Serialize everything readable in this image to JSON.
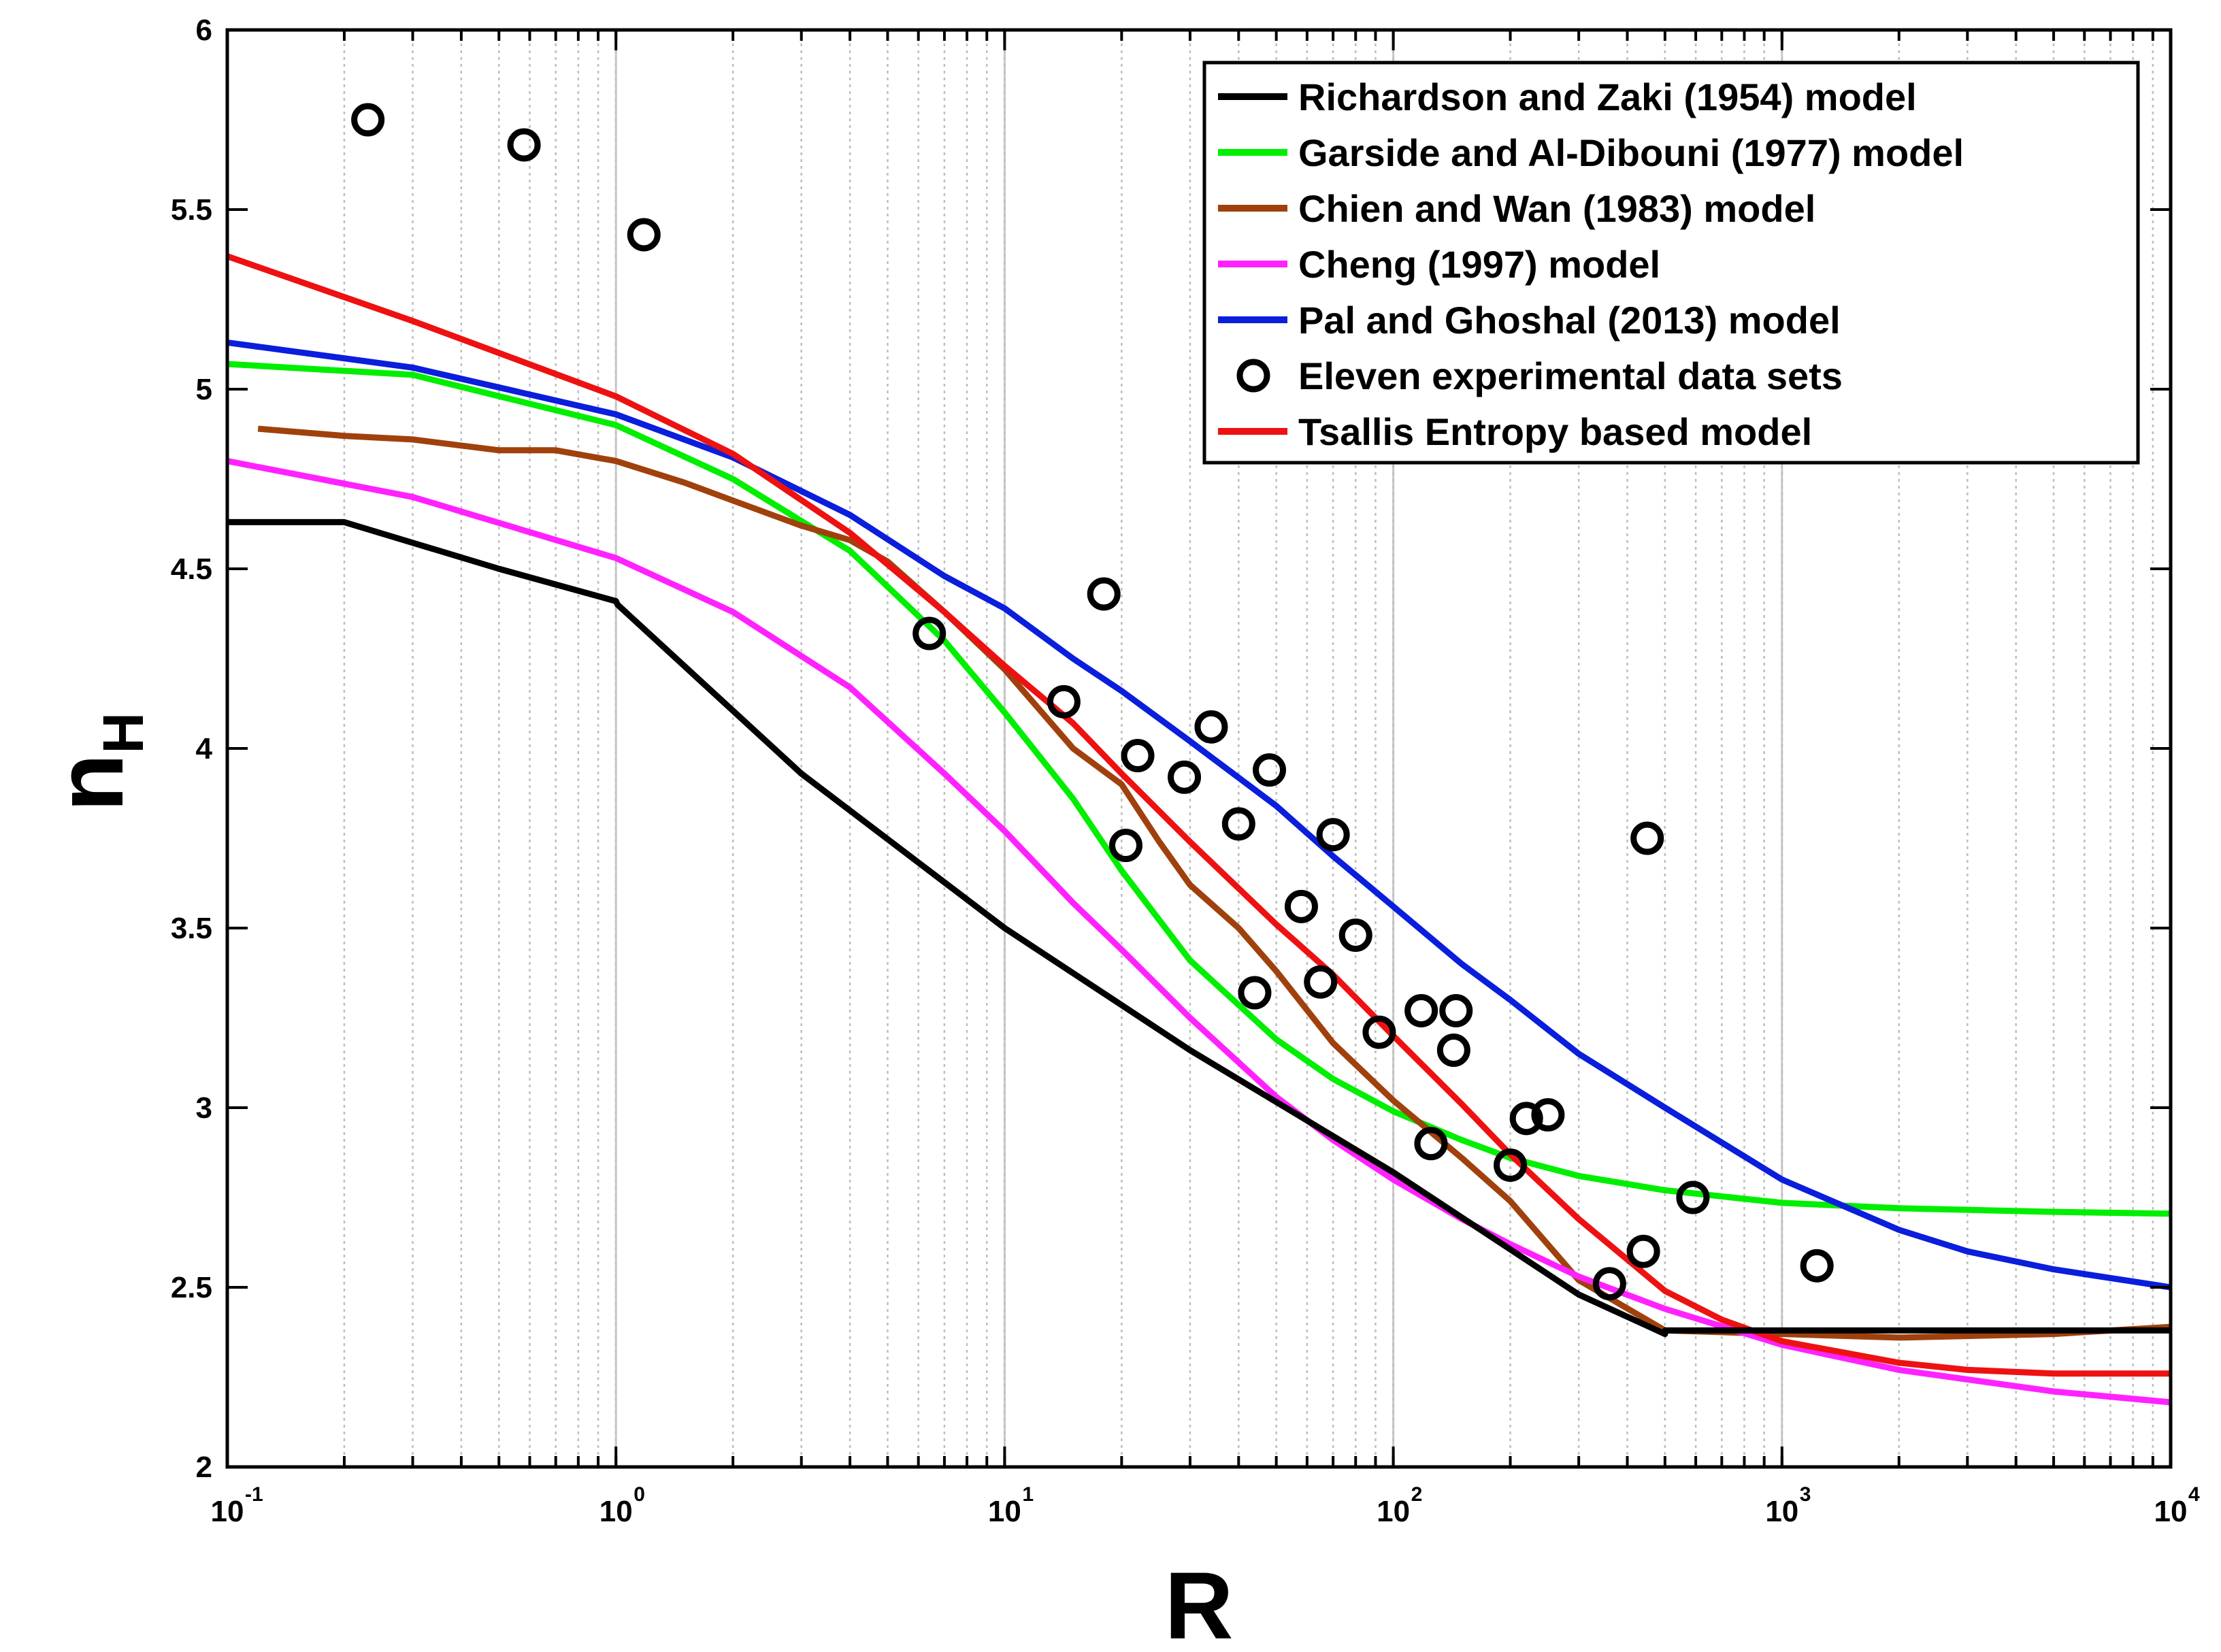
{
  "chart_data": {
    "type": "line",
    "xscale": "log",
    "xlabel": "R",
    "ylabel": "n",
    "ylabel_subscript": "H",
    "xlim": [
      0.1,
      10000
    ],
    "ylim": [
      2,
      6
    ],
    "x_major_ticks": [
      {
        "value": 0.1,
        "base": "10",
        "exp": "-1"
      },
      {
        "value": 1,
        "base": "10",
        "exp": "0"
      },
      {
        "value": 10,
        "base": "10",
        "exp": "1"
      },
      {
        "value": 100,
        "base": "10",
        "exp": "2"
      },
      {
        "value": 1000,
        "base": "10",
        "exp": "3"
      },
      {
        "value": 10000,
        "base": "10",
        "exp": "4"
      }
    ],
    "y_ticks": [
      {
        "value": 2,
        "label": "2"
      },
      {
        "value": 2.5,
        "label": "2.5"
      },
      {
        "value": 3,
        "label": "3"
      },
      {
        "value": 3.5,
        "label": "3.5"
      },
      {
        "value": 4,
        "label": "4"
      },
      {
        "value": 4.5,
        "label": "4.5"
      },
      {
        "value": 5,
        "label": "5"
      },
      {
        "value": 5.5,
        "label": "5.5"
      },
      {
        "value": 6,
        "label": "6"
      }
    ],
    "grid": "vertical minor and major (dotted)",
    "legend_position": "top-right",
    "series": [
      {
        "name": "Richardson and Zaki (1954) model",
        "color": "#000000",
        "kind": "line",
        "x": [
          0.1,
          0.2,
          0.5,
          1.0,
          1.01,
          3,
          10,
          30,
          100,
          300,
          500,
          501,
          1000,
          3000,
          10000
        ],
        "y": [
          4.63,
          4.63,
          4.5,
          4.41,
          4.4,
          3.93,
          3.5,
          3.16,
          2.82,
          2.48,
          2.37,
          2.38,
          2.38,
          2.38,
          2.38
        ]
      },
      {
        "name": "Garside and Al-Dibouni (1977) model",
        "color": "#00ee00",
        "kind": "line",
        "x": [
          0.1,
          0.3,
          1,
          2,
          4,
          7,
          10,
          15,
          20,
          30,
          50,
          70,
          100,
          150,
          200,
          300,
          500,
          1000,
          2000,
          5000,
          10000
        ],
        "y": [
          5.07,
          5.04,
          4.9,
          4.75,
          4.55,
          4.3,
          4.1,
          3.86,
          3.66,
          3.41,
          3.19,
          3.08,
          2.99,
          2.91,
          2.86,
          2.81,
          2.77,
          2.735,
          2.72,
          2.71,
          2.705
        ]
      },
      {
        "name": "Chien and Wan (1983) model",
        "color": "#a0410d",
        "kind": "line",
        "x": [
          0.12,
          0.2,
          0.3,
          0.5,
          0.7,
          1,
          1.5,
          2,
          3,
          4,
          5,
          7,
          10,
          15,
          20,
          25,
          30,
          40,
          50,
          70,
          100,
          150,
          200,
          300,
          500,
          1000,
          2000,
          5000,
          10000
        ],
        "y": [
          4.89,
          4.87,
          4.86,
          4.83,
          4.83,
          4.8,
          4.74,
          4.69,
          4.62,
          4.58,
          4.52,
          4.38,
          4.22,
          4.0,
          3.9,
          3.74,
          3.62,
          3.5,
          3.38,
          3.18,
          3.02,
          2.86,
          2.74,
          2.52,
          2.38,
          2.37,
          2.36,
          2.37,
          2.39
        ]
      },
      {
        "name": "Cheng (1997) model",
        "color": "#ff22ff",
        "kind": "line",
        "x": [
          0.1,
          0.3,
          1,
          2,
          4,
          7,
          10,
          15,
          20,
          30,
          50,
          70,
          100,
          150,
          200,
          300,
          500,
          1000,
          2000,
          5000,
          10000
        ],
        "y": [
          4.8,
          4.7,
          4.53,
          4.38,
          4.17,
          3.93,
          3.77,
          3.57,
          3.44,
          3.25,
          3.03,
          2.91,
          2.8,
          2.69,
          2.62,
          2.53,
          2.44,
          2.34,
          2.27,
          2.21,
          2.18
        ]
      },
      {
        "name": "Pal and Ghoshal (2013) model",
        "color": "#0a1edb",
        "kind": "line",
        "x": [
          0.1,
          0.3,
          1,
          2,
          4,
          7,
          10,
          15,
          20,
          30,
          50,
          70,
          100,
          150,
          200,
          300,
          500,
          1000,
          2000,
          3000,
          5000,
          10000
        ],
        "y": [
          5.13,
          5.06,
          4.93,
          4.81,
          4.65,
          4.48,
          4.39,
          4.25,
          4.16,
          4.02,
          3.84,
          3.7,
          3.56,
          3.4,
          3.3,
          3.15,
          3.0,
          2.8,
          2.66,
          2.6,
          2.55,
          2.5
        ]
      },
      {
        "name": "Eleven experimental data sets",
        "color": "#000000",
        "kind": "markers",
        "x": [
          0.23,
          0.58,
          1.18,
          6.4,
          14.2,
          18.0,
          20.5,
          22.0,
          29.0,
          34.0,
          40.0,
          44.0,
          48.0,
          58.0,
          65.0,
          70.0,
          80.0,
          92.0,
          118.0,
          125.0,
          143.0,
          145.0,
          200.0,
          220.0,
          250.0,
          360.0,
          440.0,
          450.0,
          590.0,
          1230.0
        ],
        "y": [
          5.75,
          5.68,
          5.43,
          4.32,
          4.13,
          4.43,
          3.73,
          3.98,
          3.92,
          4.06,
          3.79,
          3.32,
          3.94,
          3.56,
          3.35,
          3.76,
          3.48,
          3.21,
          3.27,
          2.9,
          3.16,
          3.27,
          2.84,
          2.97,
          2.98,
          2.51,
          2.6,
          3.75,
          2.75,
          2.56
        ]
      },
      {
        "name": "Tsallis Entropy based model",
        "color": "#ee1111",
        "kind": "line",
        "x": [
          0.1,
          0.3,
          1,
          2,
          4,
          7,
          10,
          15,
          20,
          30,
          50,
          70,
          100,
          150,
          200,
          300,
          500,
          700,
          1000,
          2000,
          3000,
          5000,
          10000
        ],
        "y": [
          5.37,
          5.19,
          4.98,
          4.82,
          4.6,
          4.38,
          4.23,
          4.07,
          3.93,
          3.74,
          3.51,
          3.37,
          3.2,
          3.01,
          2.87,
          2.69,
          2.49,
          2.41,
          2.35,
          2.29,
          2.27,
          2.26,
          2.26
        ]
      }
    ]
  }
}
